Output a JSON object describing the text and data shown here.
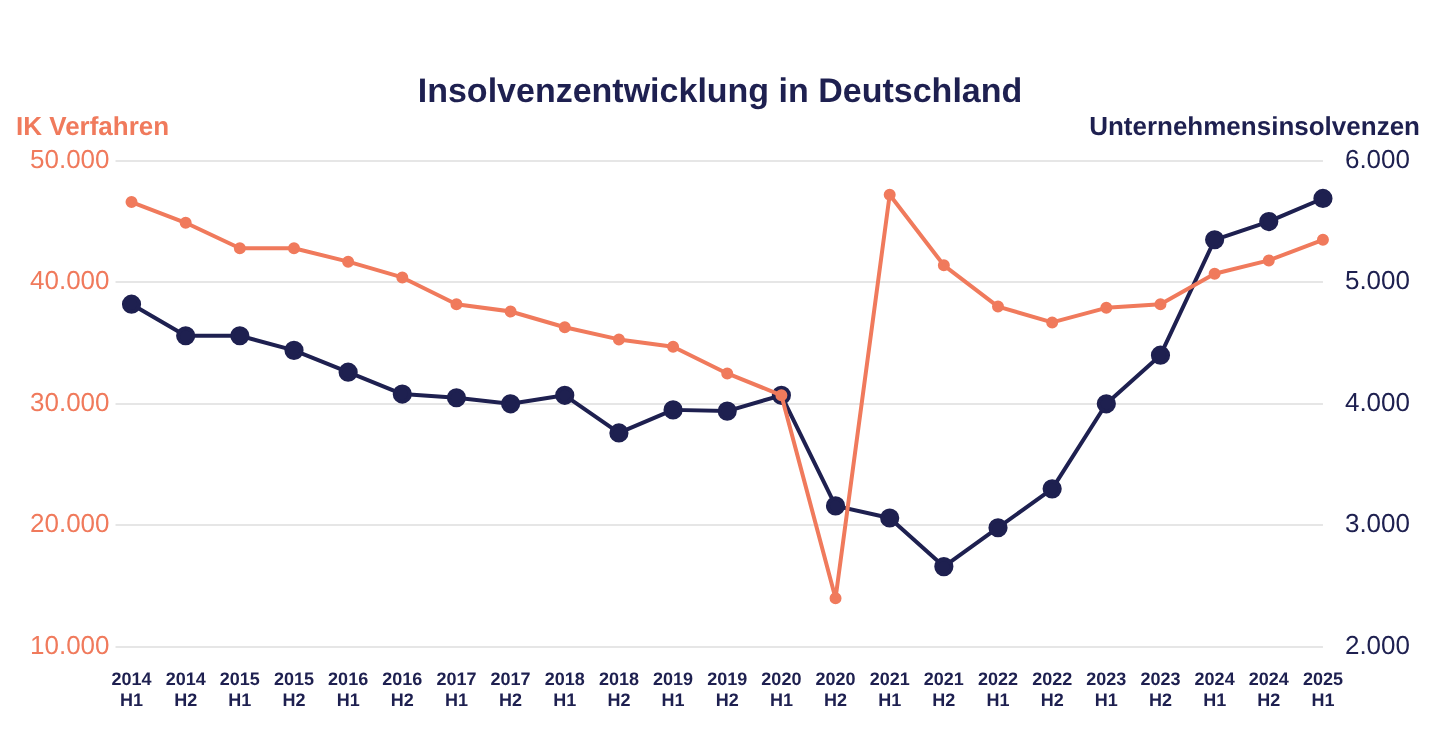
{
  "chart_data": {
    "type": "line",
    "title": "Insolvenzentwicklung in Deutschland",
    "ylabel": "IK Verfahren",
    "y2label": "Unternehmensinsolvenzen",
    "categories": [
      "2014 H1",
      "2014 H2",
      "2015 H1",
      "2015 H2",
      "2016 H1",
      "2016 H2",
      "2017 H1",
      "2017 H2",
      "2018 H1",
      "2018 H2",
      "2019 H1",
      "2019 H2",
      "2020 H1",
      "2020 H2",
      "2021 H1",
      "2021 H2",
      "2022 H1",
      "2022 H2",
      "2023 H1",
      "2023 H2",
      "2024 H1",
      "2024 H2",
      "2025 H1"
    ],
    "series": [
      {
        "name": null,
        "color": "#f07a5c",
        "values": [
          46600,
          44900,
          42800,
          42800,
          41700,
          40400,
          38200,
          37600,
          36300,
          35300,
          34700,
          32500,
          30700,
          14000,
          47200,
          41400,
          38000,
          36700,
          37900,
          38200,
          40700,
          41800,
          43500
        ]
      },
      {
        "name": null,
        "color": "#1e2050",
        "axis": "y2",
        "values": [
          4820,
          4560,
          4560,
          4440,
          4260,
          4080,
          4050,
          4000,
          4070,
          3760,
          3950,
          3940,
          4070,
          3160,
          3060,
          2660,
          2980,
          3300,
          4000,
          4400,
          5350,
          5500,
          5690
        ]
      }
    ],
    "ylim": [
      10000,
      50000
    ],
    "yticks": [
      {
        "value": 10000,
        "label": "10.000"
      },
      {
        "value": 20000,
        "label": "20.000"
      },
      {
        "value": 30000,
        "label": "30.000"
      },
      {
        "value": 40000,
        "label": "40.000"
      },
      {
        "value": 50000,
        "label": "50.000"
      }
    ],
    "y2lim": [
      2000,
      6000
    ],
    "y2ticks": [
      {
        "value": 2000,
        "label": "2.000"
      },
      {
        "value": 3000,
        "label": "3.000"
      },
      {
        "value": 4000,
        "label": "4.000"
      },
      {
        "value": 5000,
        "label": "5.000"
      },
      {
        "value": 6000,
        "label": "6.000"
      }
    ],
    "grid": "y",
    "legend": false,
    "marker": "circle",
    "line_style": "solid"
  }
}
